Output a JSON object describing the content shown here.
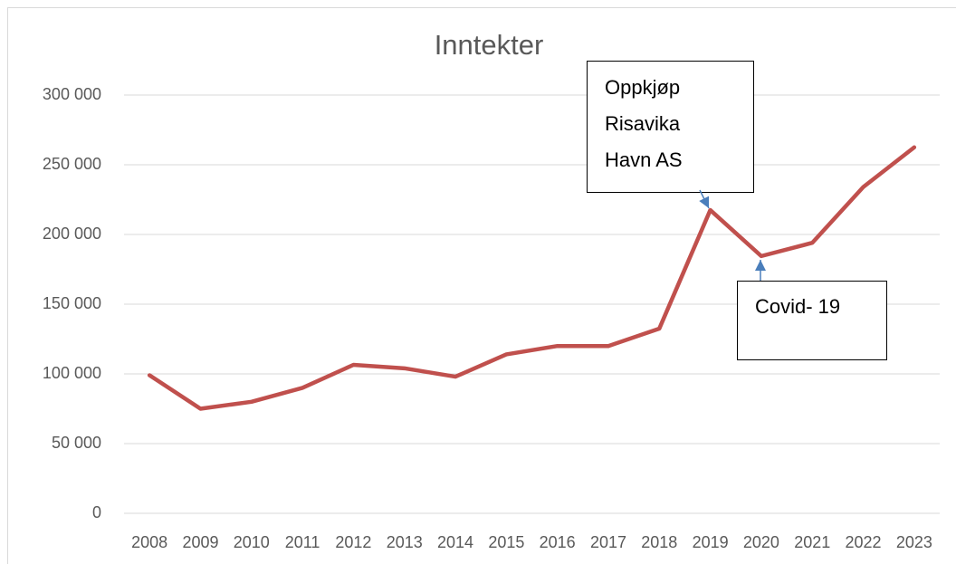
{
  "chart_data": {
    "type": "line",
    "title": "Inntekter",
    "categories": [
      "2008",
      "2009",
      "2010",
      "2011",
      "2012",
      "2013",
      "2014",
      "2015",
      "2016",
      "2017",
      "2018",
      "2019",
      "2020",
      "2021",
      "2022",
      "2023"
    ],
    "series": [
      {
        "name": "Inntekter",
        "color": "#c0504d",
        "values": [
          99000,
          75000,
          80000,
          90000,
          106500,
          104000,
          98000,
          114000,
          120000,
          120000,
          132500,
          217500,
          184500,
          194000,
          234000,
          262500
        ]
      }
    ],
    "ylim": [
      0,
      300000
    ],
    "yticks": [
      0,
      {
        "value": 50000,
        "label": "50 000"
      },
      {
        "value": 100000,
        "label": "100 000"
      },
      {
        "value": 150000,
        "label": "150 000"
      },
      {
        "value": 200000,
        "label": "200 000"
      },
      {
        "value": 250000,
        "label": "250 000"
      },
      {
        "value": 300000,
        "label": "300 000"
      }
    ],
    "grid": true,
    "annotations": [
      {
        "lines": [
          "Oppkjøp",
          "Risavika",
          "Havn AS"
        ]
      },
      {
        "lines": [
          "Covid- 19"
        ]
      }
    ]
  }
}
